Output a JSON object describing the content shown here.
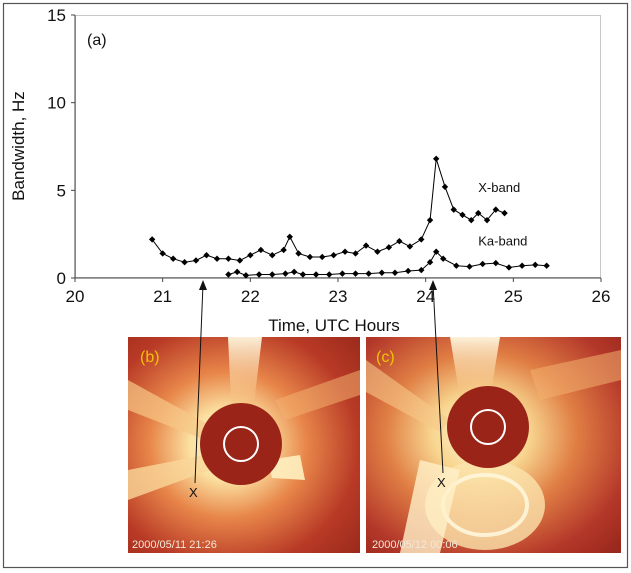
{
  "chart_data": {
    "type": "line",
    "panel_label": "(a)",
    "xlabel": "Time, UTC Hours",
    "ylabel": "Bandwidth, Hz",
    "xlim": [
      20,
      26
    ],
    "ylim": [
      0,
      15
    ],
    "xticks": [
      20,
      21,
      22,
      23,
      24,
      25,
      26
    ],
    "yticks": [
      0,
      5,
      10,
      15
    ],
    "grid": false,
    "series": [
      {
        "name": "X-band",
        "color": "#000000",
        "points": [
          [
            20.88,
            2.2
          ],
          [
            21.0,
            1.4
          ],
          [
            21.12,
            1.1
          ],
          [
            21.25,
            0.9
          ],
          [
            21.38,
            1.0
          ],
          [
            21.5,
            1.3
          ],
          [
            21.62,
            1.1
          ],
          [
            21.75,
            1.1
          ],
          [
            21.88,
            1.0
          ],
          [
            22.0,
            1.3
          ],
          [
            22.12,
            1.6
          ],
          [
            22.25,
            1.3
          ],
          [
            22.38,
            1.6
          ],
          [
            22.45,
            2.35
          ],
          [
            22.55,
            1.4
          ],
          [
            22.68,
            1.2
          ],
          [
            22.82,
            1.2
          ],
          [
            22.95,
            1.3
          ],
          [
            23.08,
            1.5
          ],
          [
            23.2,
            1.4
          ],
          [
            23.32,
            1.85
          ],
          [
            23.45,
            1.5
          ],
          [
            23.58,
            1.75
          ],
          [
            23.7,
            2.1
          ],
          [
            23.82,
            1.8
          ],
          [
            23.95,
            2.2
          ],
          [
            24.05,
            3.3
          ],
          [
            24.12,
            6.8
          ],
          [
            24.22,
            5.2
          ],
          [
            24.32,
            3.9
          ],
          [
            24.42,
            3.6
          ],
          [
            24.52,
            3.3
          ],
          [
            24.6,
            3.7
          ],
          [
            24.7,
            3.3
          ],
          [
            24.8,
            3.9
          ],
          [
            24.9,
            3.7
          ]
        ]
      },
      {
        "name": "Ka-band",
        "color": "#000000",
        "points": [
          [
            21.75,
            0.2
          ],
          [
            21.85,
            0.35
          ],
          [
            21.95,
            0.15
          ],
          [
            22.1,
            0.2
          ],
          [
            22.25,
            0.2
          ],
          [
            22.4,
            0.25
          ],
          [
            22.5,
            0.35
          ],
          [
            22.6,
            0.2
          ],
          [
            22.75,
            0.2
          ],
          [
            22.9,
            0.2
          ],
          [
            23.05,
            0.25
          ],
          [
            23.2,
            0.25
          ],
          [
            23.35,
            0.25
          ],
          [
            23.5,
            0.3
          ],
          [
            23.65,
            0.3
          ],
          [
            23.8,
            0.4
          ],
          [
            23.95,
            0.45
          ],
          [
            24.05,
            0.9
          ],
          [
            24.12,
            1.5
          ],
          [
            24.2,
            1.1
          ],
          [
            24.35,
            0.7
          ],
          [
            24.5,
            0.65
          ],
          [
            24.65,
            0.8
          ],
          [
            24.8,
            0.85
          ],
          [
            24.95,
            0.6
          ],
          [
            25.1,
            0.7
          ],
          [
            25.25,
            0.75
          ],
          [
            25.38,
            0.7
          ]
        ]
      }
    ],
    "annotations": [
      {
        "text": "X-band",
        "x": 24.6,
        "y": 4.9
      },
      {
        "text": "Ka-band",
        "x": 24.6,
        "y": 1.85
      }
    ],
    "pointers": [
      {
        "from_time": 21.35,
        "to_image": "b",
        "label": "X"
      },
      {
        "from_time": 24.1,
        "to_image": "c",
        "label": "X"
      }
    ]
  },
  "images": [
    {
      "id": "b",
      "panel_label": "(b)",
      "timestamp": "2000/05/11 21:26",
      "marker": "X",
      "label_color": "#f2c200"
    },
    {
      "id": "c",
      "panel_label": "(c)",
      "timestamp": "2000/05/12 00:06",
      "marker": "X",
      "label_color": "#f2c200"
    }
  ]
}
